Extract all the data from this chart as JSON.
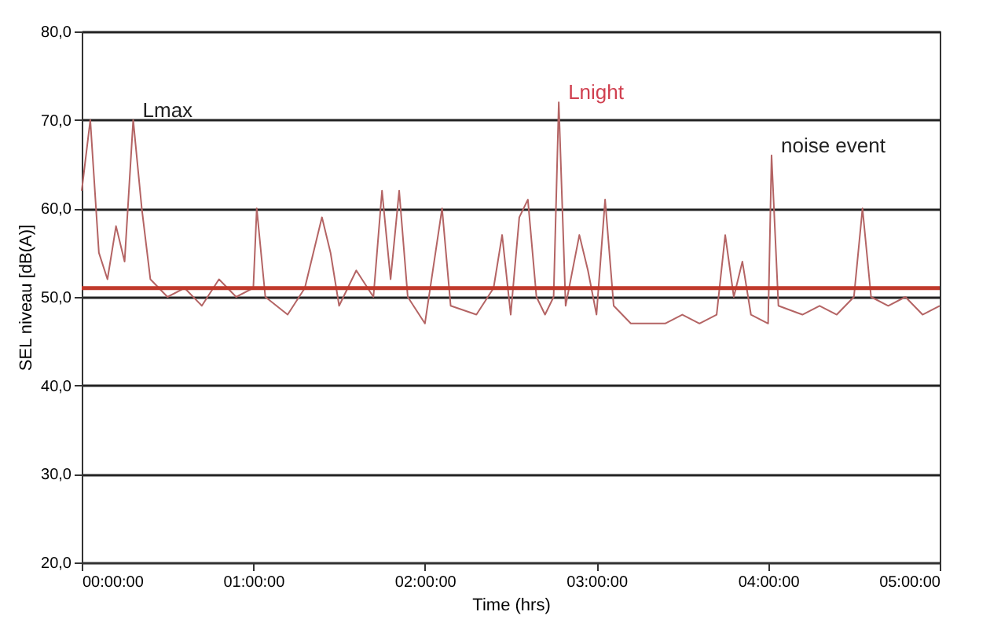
{
  "chart_data": {
    "type": "line",
    "xlabel": "Time (hrs)",
    "ylabel": "SEL niveau [dB(A)]",
    "xlim": [
      0,
      5
    ],
    "ylim": [
      20,
      80
    ],
    "xticks": [
      {
        "value": 0,
        "label": "00:00:00"
      },
      {
        "value": 1,
        "label": "01:00:00"
      },
      {
        "value": 2,
        "label": "02:00:00"
      },
      {
        "value": 3,
        "label": "03:00:00"
      },
      {
        "value": 4,
        "label": "04:00:00"
      },
      {
        "value": 5,
        "label": "05:00:00"
      }
    ],
    "yticks": [
      {
        "value": 20,
        "label": "20,0"
      },
      {
        "value": 30,
        "label": "30,0"
      },
      {
        "value": 40,
        "label": "40,0"
      },
      {
        "value": 50,
        "label": "50,0"
      },
      {
        "value": 60,
        "label": "60,0"
      },
      {
        "value": 70,
        "label": "70,0"
      },
      {
        "value": 80,
        "label": "80,0"
      }
    ],
    "grid": "y",
    "marker": "none",
    "line_style": "solid",
    "series": [
      {
        "color": "#b46464",
        "x": [
          0.0,
          0.05,
          0.1,
          0.15,
          0.2,
          0.25,
          0.3,
          0.35,
          0.4,
          0.5,
          0.6,
          0.7,
          0.8,
          0.9,
          1.0,
          1.02,
          1.07,
          1.2,
          1.3,
          1.4,
          1.45,
          1.5,
          1.6,
          1.7,
          1.75,
          1.8,
          1.85,
          1.9,
          2.0,
          2.1,
          2.15,
          2.3,
          2.4,
          2.45,
          2.5,
          2.55,
          2.6,
          2.65,
          2.7,
          2.75,
          2.78,
          2.82,
          2.9,
          2.95,
          3.0,
          3.05,
          3.1,
          3.2,
          3.4,
          3.5,
          3.6,
          3.7,
          3.75,
          3.8,
          3.85,
          3.9,
          4.0,
          4.02,
          4.06,
          4.2,
          4.3,
          4.4,
          4.5,
          4.55,
          4.6,
          4.7,
          4.8,
          4.9,
          5.0
        ],
        "values": [
          62,
          70,
          55,
          52,
          58,
          54,
          70,
          60,
          52,
          50,
          51,
          49,
          52,
          50,
          51,
          60,
          50,
          48,
          51,
          59,
          55,
          49,
          53,
          50,
          62,
          52,
          62,
          50,
          47,
          60,
          49,
          48,
          51,
          57,
          48,
          59,
          61,
          50,
          48,
          50,
          72,
          49,
          57,
          53,
          48,
          61,
          49,
          47,
          47,
          48,
          47,
          48,
          57,
          50,
          54,
          48,
          47,
          66,
          49,
          48,
          49,
          48,
          50,
          60,
          50,
          49,
          50,
          48,
          49
        ]
      }
    ],
    "ref_lines": [
      {
        "axis": "y",
        "value": 51,
        "color": "#c0392b"
      }
    ],
    "annotations": [
      {
        "text": "Lmax",
        "x": 0.3,
        "y": 70
      },
      {
        "text": "Lnight",
        "x": 2.78,
        "y": 72
      },
      {
        "text": "noise event",
        "x": 4.02,
        "y": 66
      }
    ]
  }
}
